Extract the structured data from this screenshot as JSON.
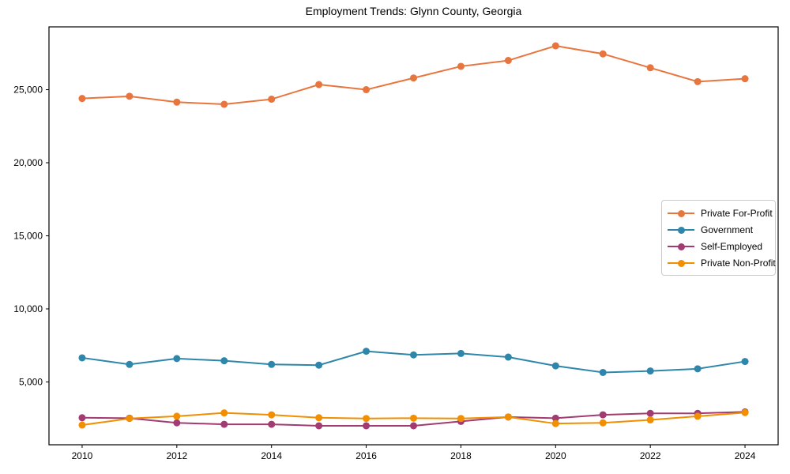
{
  "chart_data": {
    "type": "line",
    "title": "Employment Trends: Glynn County, Georgia",
    "xlabel": "",
    "ylabel": "",
    "x": [
      2010,
      2011,
      2012,
      2013,
      2014,
      2015,
      2016,
      2017,
      2018,
      2019,
      2020,
      2021,
      2022,
      2023,
      2024
    ],
    "series": [
      {
        "name": "Private For-Profit",
        "color": "#E8753E",
        "values": [
          24400,
          24550,
          24150,
          24000,
          24350,
          25350,
          25000,
          25800,
          26600,
          27000,
          28000,
          27450,
          26500,
          25550,
          25750
        ]
      },
      {
        "name": "Government",
        "color": "#2E86AB",
        "values": [
          6650,
          6200,
          6600,
          6450,
          6200,
          6150,
          7100,
          6850,
          6950,
          6700,
          6100,
          5650,
          5750,
          5900,
          6400
        ]
      },
      {
        "name": "Self-Employed",
        "color": "#A23B72",
        "values": [
          2550,
          2520,
          2200,
          2100,
          2100,
          2000,
          2000,
          2000,
          2300,
          2600,
          2520,
          2750,
          2850,
          2850,
          2950
        ]
      },
      {
        "name": "Private Non-Profit",
        "color": "#F18F01",
        "values": [
          2050,
          2500,
          2650,
          2880,
          2750,
          2550,
          2500,
          2520,
          2500,
          2600,
          2150,
          2200,
          2400,
          2650,
          2900
        ]
      }
    ],
    "xticks": [
      2010,
      2012,
      2014,
      2016,
      2018,
      2020,
      2022,
      2024
    ],
    "yticks": [
      5000,
      10000,
      15000,
      20000,
      25000
    ],
    "ytick_labels": [
      "5,000",
      "10,000",
      "15,000",
      "20,000",
      "25,000"
    ],
    "xlim": [
      2009.3,
      2024.7
    ],
    "ylim": [
      700,
      29300
    ],
    "grid": false,
    "legend_position": "center right",
    "frame_color": "#000000",
    "background_color": "#ffffff"
  }
}
